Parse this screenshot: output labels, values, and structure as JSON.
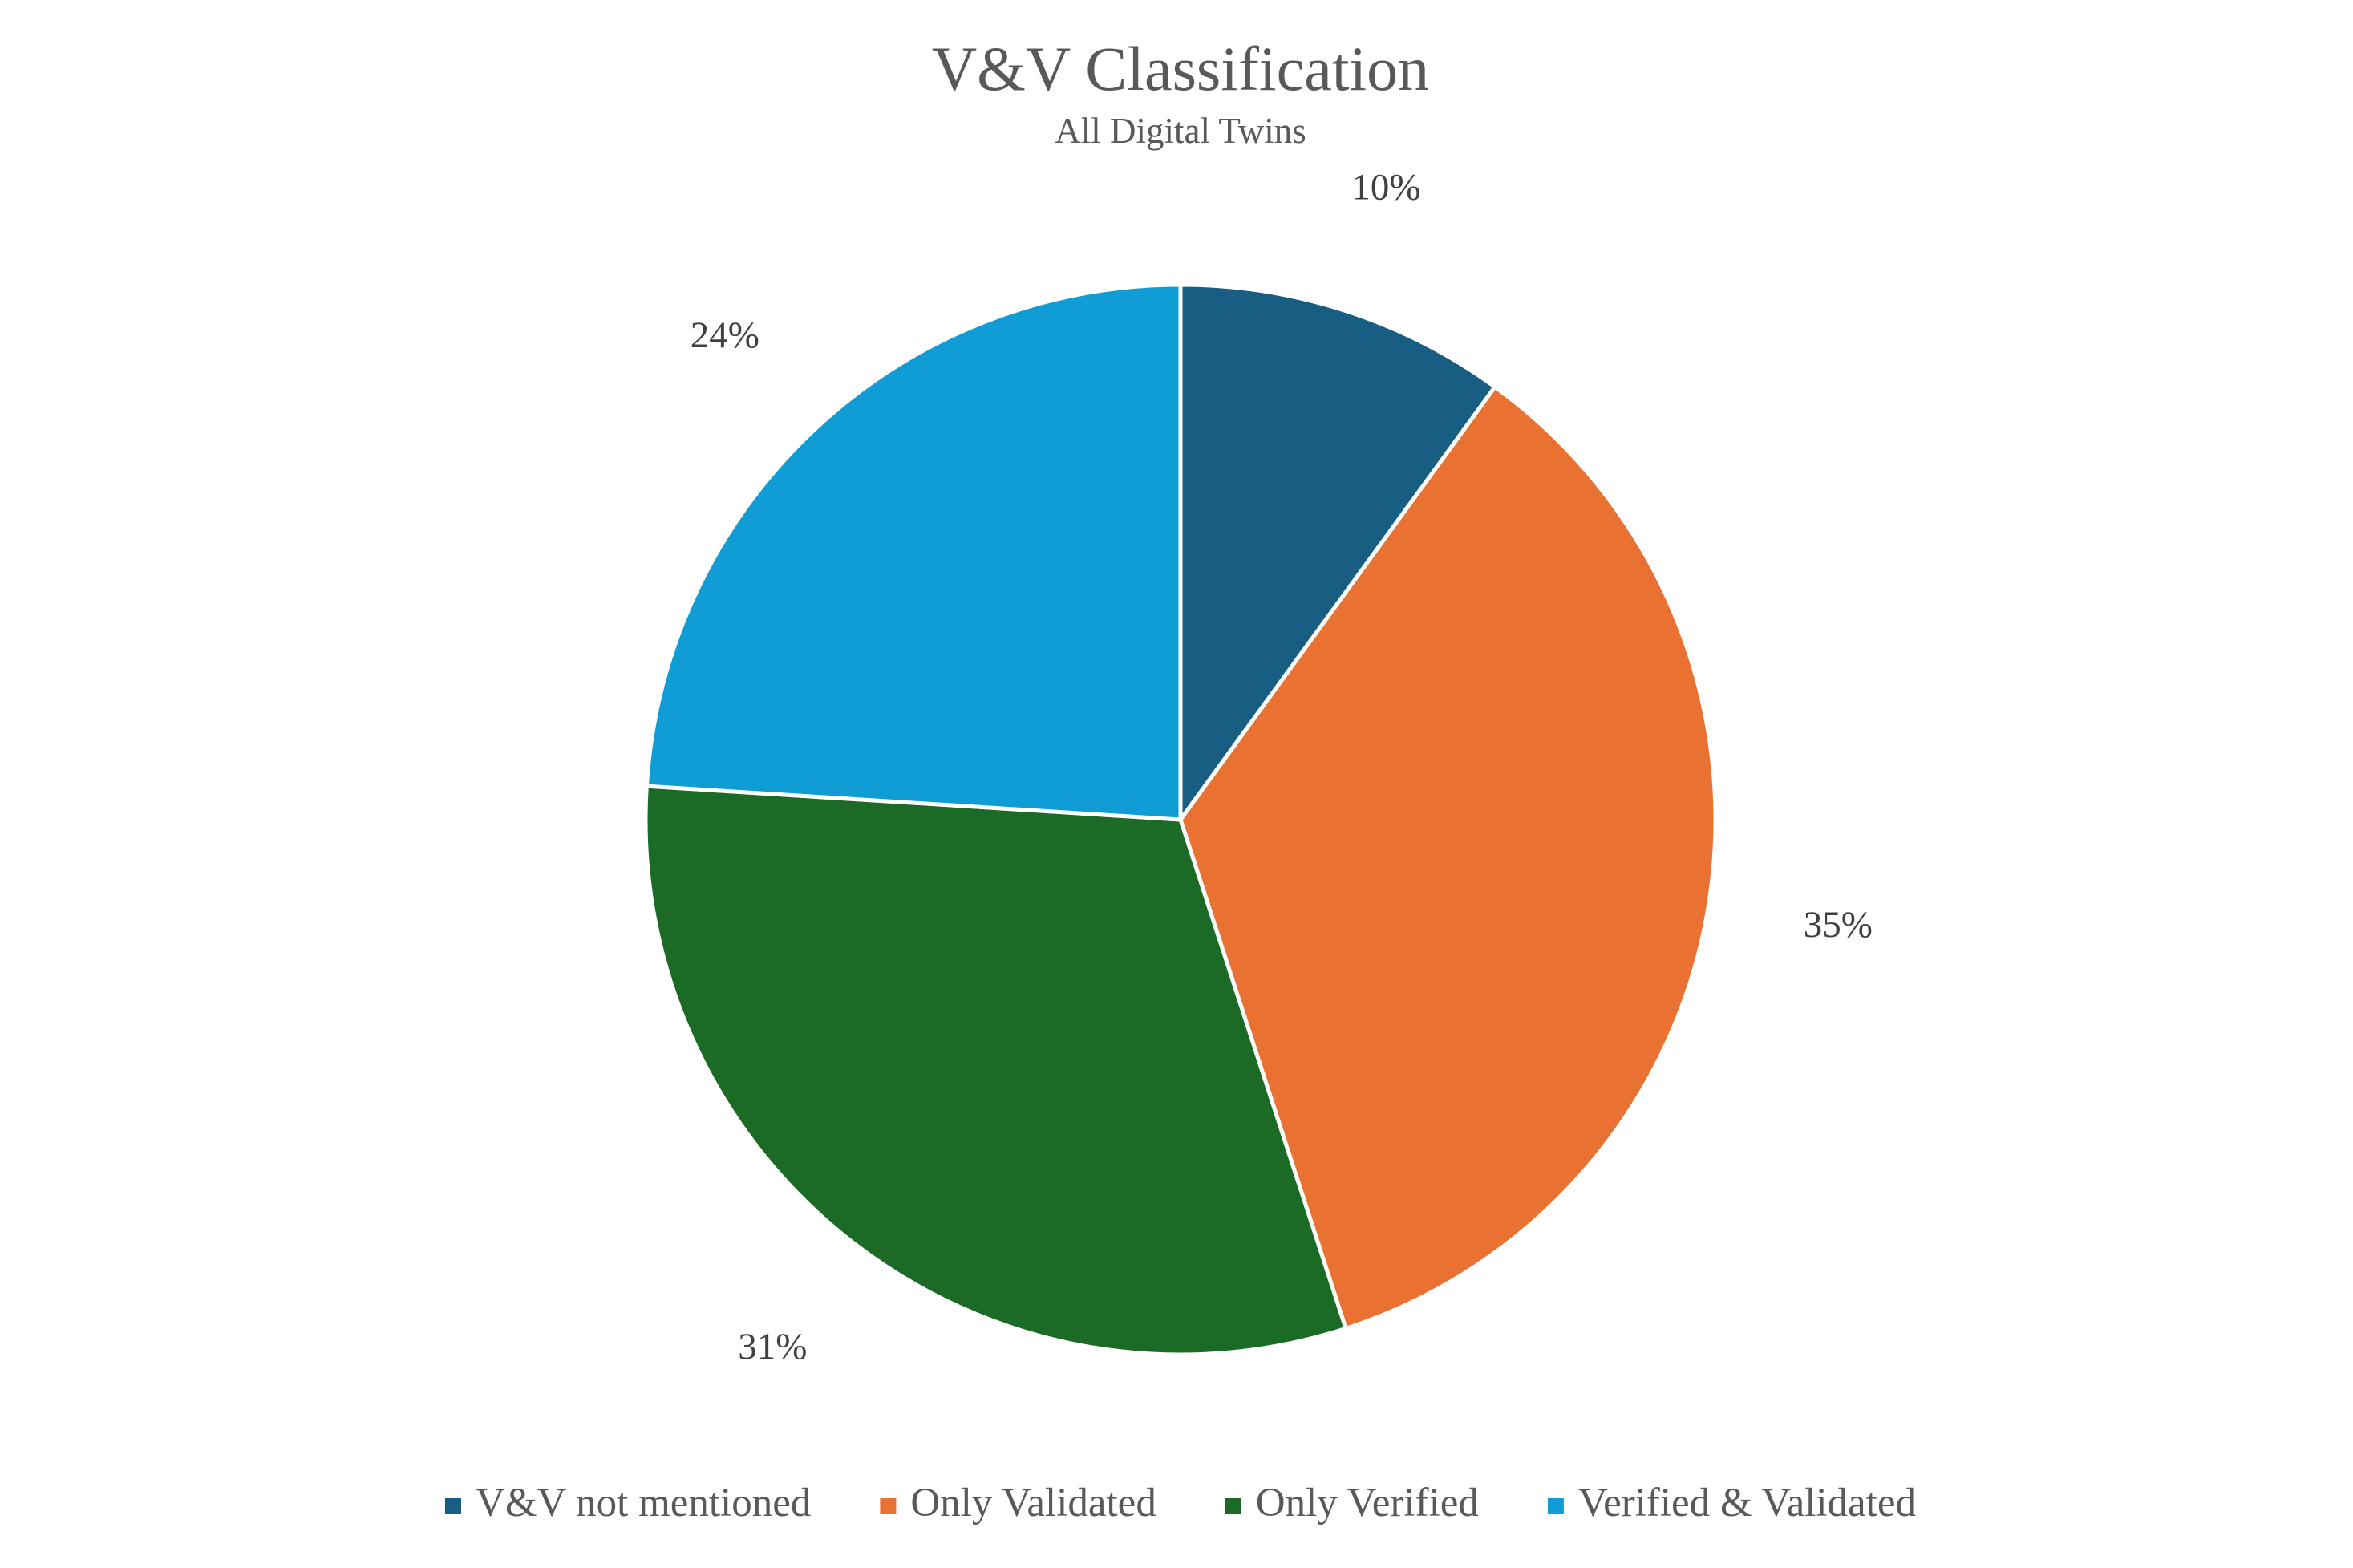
{
  "chart_data": {
    "type": "pie",
    "title": "V&V Classification",
    "subtitle": "All Digital Twins",
    "categories": [
      "V&V not mentioned",
      "Only Validated",
      "Only Verified",
      "Verified & Validated"
    ],
    "values": [
      10,
      35,
      31,
      24
    ],
    "value_labels": [
      "10%",
      "35%",
      "31%",
      "24%"
    ],
    "colors": [
      "#175E82",
      "#E97132",
      "#1B6A25",
      "#109DD5"
    ],
    "start_angle": "12 o'clock",
    "direction": "clockwise",
    "legend_position": "bottom"
  }
}
